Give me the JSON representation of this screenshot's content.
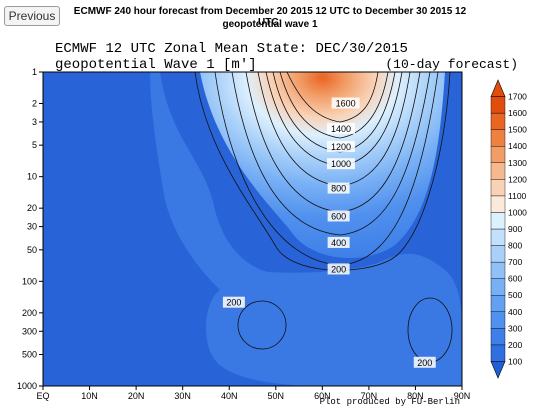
{
  "toolbar": {
    "previous_label": "Previous"
  },
  "header": {
    "line1": "ECMWF 240 hour forecast from December 20 2015 12 UTC to December 30 2015 12 UTC:",
    "line2": "geopotential wave 1"
  },
  "chart_data": {
    "type": "heatmap",
    "title": "ECMWF 12 UTC Zonal Mean State: DEC/30/2015",
    "subtitle": "geopotential Wave 1 [m']",
    "note": "(10-day forecast)",
    "credit": "Plot produced by FU-Berlin",
    "x": {
      "ticks": [
        "EQ",
        "10N",
        "20N",
        "30N",
        "40N",
        "50N",
        "60N",
        "70N",
        "80N",
        "90N"
      ],
      "values": [
        0,
        10,
        20,
        30,
        40,
        50,
        60,
        70,
        80,
        90
      ],
      "range": [
        0,
        90
      ]
    },
    "y": {
      "ticks": [
        "1",
        "2",
        "3",
        "5",
        "10",
        "20",
        "30",
        "50",
        "100",
        "200",
        "300",
        "500",
        "1000"
      ],
      "values": [
        1,
        2,
        3,
        5,
        10,
        20,
        30,
        50,
        100,
        200,
        300,
        500,
        1000
      ],
      "range": [
        1,
        1000
      ],
      "scale": "log",
      "inverted": true
    },
    "colorbar": {
      "levels": [
        100,
        200,
        300,
        400,
        500,
        600,
        700,
        800,
        900,
        1000,
        1100,
        1200,
        1300,
        1400,
        1500,
        1600,
        1700
      ],
      "colors": [
        "#1f5fd6",
        "#2f6fe0",
        "#3f80e8",
        "#5090ee",
        "#63a0f2",
        "#78b0f5",
        "#8fc0f7",
        "#a8d0f9",
        "#c2e0fb",
        "#ddf0fd",
        "#fbe9dc",
        "#f9d2b6",
        "#f6b88e",
        "#f29c66",
        "#ee8040",
        "#e96522",
        "#e04d0c"
      ]
    },
    "contour_labels": [
      {
        "value": "1600",
        "lat": 65,
        "p": 2
      },
      {
        "value": "1400",
        "lat": 64,
        "p": 3.5
      },
      {
        "value": "1200",
        "lat": 64,
        "p": 5.2
      },
      {
        "value": "1000",
        "lat": 64,
        "p": 7.6
      },
      {
        "value": "800",
        "lat": 63.5,
        "p": 13
      },
      {
        "value": "600",
        "lat": 63.5,
        "p": 24
      },
      {
        "value": "400",
        "lat": 63.5,
        "p": 43
      },
      {
        "value": "200",
        "lat": 63.5,
        "p": 77
      },
      {
        "value": "200",
        "lat": 41,
        "p": 160
      },
      {
        "value": "200",
        "lat": 82,
        "p": 600
      }
    ],
    "colors": {
      "field_base": "#2864d8",
      "contour": "#111111"
    }
  }
}
